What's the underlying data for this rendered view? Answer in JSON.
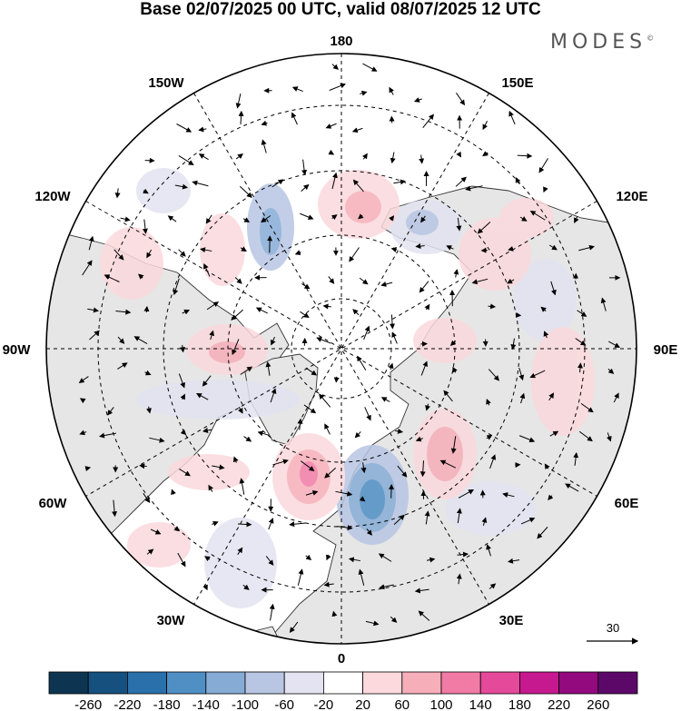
{
  "title": "Base 02/07/2025 00 UTC, valid 08/07/2025 12 UTC",
  "brand": "MODES",
  "brand_mark": "©",
  "map": {
    "projection": "north-polar-stereographic",
    "longitude_labels": {
      "top": "180",
      "top_left": "150W",
      "top_right": "150E",
      "upper_left": "120W",
      "upper_right": "120E",
      "left": "90W",
      "right": "90E",
      "lower_left": "60W",
      "lower_right": "60E",
      "bottom_left": "30W",
      "bottom_right": "30E",
      "bottom": "0"
    },
    "land_color": "#e6e6e6",
    "graticule": "dashed"
  },
  "vector_reference": {
    "label": "30"
  },
  "colorbar": {
    "ticks": [
      "-260",
      "-220",
      "-180",
      "-140",
      "-100",
      "-60",
      "-20",
      "20",
      "60",
      "100",
      "140",
      "180",
      "220",
      "260"
    ],
    "colors": [
      "#0d3552",
      "#15507f",
      "#2a71ac",
      "#4f8fc4",
      "#86acd6",
      "#b8c6e3",
      "#e3e3f1",
      "#ffffff",
      "#fbd9dc",
      "#f6aeb9",
      "#f27ba6",
      "#e54a9a",
      "#c6198f",
      "#93097e",
      "#5c0869"
    ]
  }
}
